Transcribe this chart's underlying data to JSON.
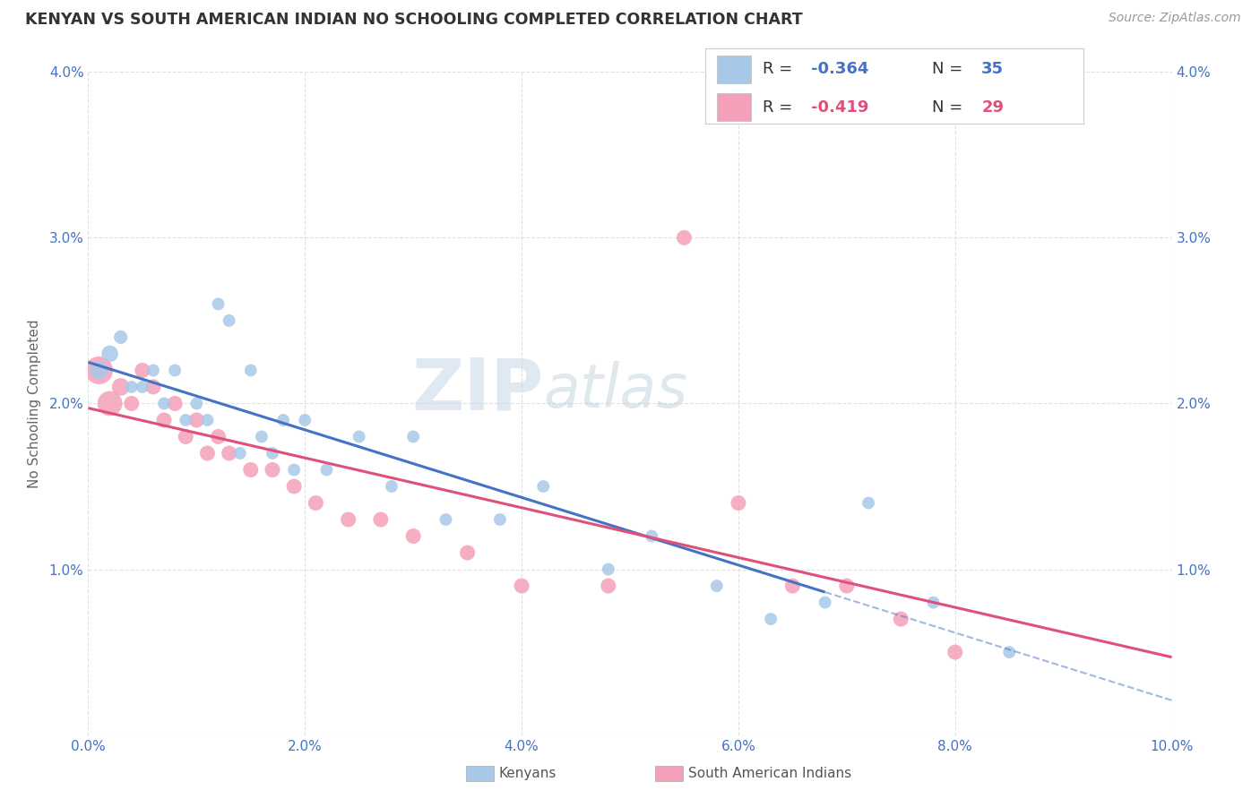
{
  "title": "KENYAN VS SOUTH AMERICAN INDIAN NO SCHOOLING COMPLETED CORRELATION CHART",
  "source": "Source: ZipAtlas.com",
  "ylabel": "No Schooling Completed",
  "xlim": [
    0.0,
    0.1
  ],
  "ylim": [
    0.0,
    0.04
  ],
  "xticks": [
    0.0,
    0.02,
    0.04,
    0.06,
    0.08,
    0.1
  ],
  "yticks": [
    0.0,
    0.01,
    0.02,
    0.03,
    0.04
  ],
  "xtick_labels": [
    "0.0%",
    "2.0%",
    "4.0%",
    "6.0%",
    "8.0%",
    "10.0%"
  ],
  "ytick_labels": [
    "",
    "1.0%",
    "2.0%",
    "3.0%",
    "4.0%"
  ],
  "right_ytick_labels": [
    "",
    "1.0%",
    "2.0%",
    "3.0%",
    "4.0%"
  ],
  "kenyan_R": "-0.364",
  "kenyan_N": "35",
  "sa_indian_R": "-0.419",
  "sa_indian_N": "29",
  "kenyan_color": "#a8c8e8",
  "kenyan_line_color": "#4472c4",
  "sa_indian_color": "#f4a0b8",
  "sa_indian_line_color": "#e0507a",
  "watermark_zip": "ZIP",
  "watermark_atlas": "atlas",
  "kenyan_x": [
    0.001,
    0.002,
    0.003,
    0.004,
    0.005,
    0.006,
    0.007,
    0.008,
    0.009,
    0.01,
    0.011,
    0.012,
    0.013,
    0.014,
    0.015,
    0.016,
    0.017,
    0.018,
    0.019,
    0.02,
    0.022,
    0.025,
    0.028,
    0.03,
    0.033,
    0.038,
    0.042,
    0.048,
    0.052,
    0.058,
    0.063,
    0.068,
    0.072,
    0.078,
    0.085
  ],
  "kenyan_y": [
    0.022,
    0.023,
    0.024,
    0.021,
    0.021,
    0.022,
    0.02,
    0.022,
    0.019,
    0.02,
    0.019,
    0.026,
    0.025,
    0.017,
    0.022,
    0.018,
    0.017,
    0.019,
    0.016,
    0.019,
    0.016,
    0.018,
    0.015,
    0.018,
    0.013,
    0.013,
    0.015,
    0.01,
    0.012,
    0.009,
    0.007,
    0.008,
    0.014,
    0.008,
    0.005
  ],
  "kenyan_sizes": [
    200,
    180,
    120,
    100,
    100,
    100,
    100,
    100,
    100,
    100,
    100,
    100,
    100,
    100,
    100,
    100,
    100,
    100,
    100,
    100,
    100,
    100,
    100,
    100,
    100,
    100,
    100,
    100,
    100,
    100,
    100,
    100,
    100,
    100,
    100
  ],
  "sa_indian_x": [
    0.001,
    0.002,
    0.003,
    0.004,
    0.005,
    0.006,
    0.007,
    0.008,
    0.009,
    0.01,
    0.011,
    0.012,
    0.013,
    0.015,
    0.017,
    0.019,
    0.021,
    0.024,
    0.027,
    0.03,
    0.035,
    0.04,
    0.048,
    0.055,
    0.06,
    0.065,
    0.07,
    0.075,
    0.08
  ],
  "sa_indian_y": [
    0.022,
    0.02,
    0.021,
    0.02,
    0.022,
    0.021,
    0.019,
    0.02,
    0.018,
    0.019,
    0.017,
    0.018,
    0.017,
    0.016,
    0.016,
    0.015,
    0.014,
    0.013,
    0.013,
    0.012,
    0.011,
    0.009,
    0.009,
    0.03,
    0.014,
    0.009,
    0.009,
    0.007,
    0.005
  ],
  "sa_indian_sizes": [
    500,
    400,
    200,
    150,
    150,
    150,
    150,
    150,
    150,
    150,
    150,
    150,
    150,
    150,
    150,
    150,
    150,
    150,
    150,
    150,
    150,
    150,
    150,
    150,
    150,
    150,
    150,
    150,
    150
  ],
  "background_color": "#ffffff",
  "grid_color": "#dddddd",
  "title_color": "#333333",
  "axis_color": "#4472c4"
}
